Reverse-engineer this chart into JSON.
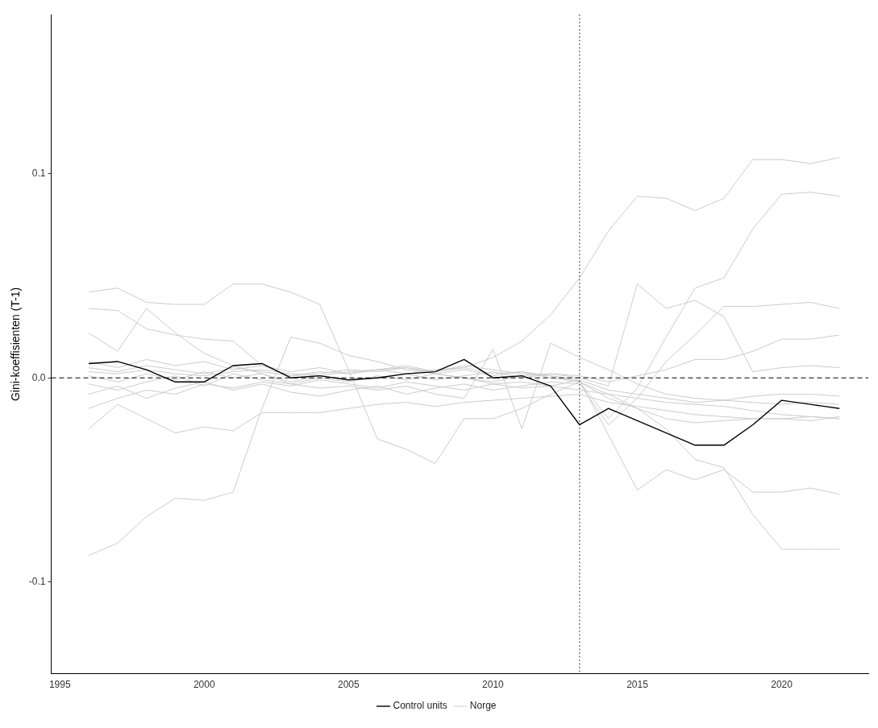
{
  "chart_data": {
    "type": "line",
    "ylabel": "Gini-koeffisienten (T-1)",
    "x": [
      1996,
      1997,
      1998,
      1999,
      2000,
      2001,
      2002,
      2003,
      2004,
      2005,
      2006,
      2007,
      2008,
      2009,
      2010,
      2011,
      2012,
      2013,
      2014,
      2015,
      2016,
      2017,
      2018,
      2019,
      2020,
      2021,
      2022
    ],
    "xlim": [
      1994.7,
      2023.0
    ],
    "xticks": [
      1995,
      2000,
      2005,
      2010,
      2015,
      2020
    ],
    "ylim": [
      -0.145,
      0.178
    ],
    "yticks": [
      -0.1,
      {
        "value": 0,
        "label": "0.0"
      },
      0.1
    ],
    "grid": false,
    "legend": "bottom",
    "marker": "none",
    "ref_lines": [
      {
        "axis": "y",
        "value": 0,
        "color": "#000000",
        "line_style": "dashed"
      },
      {
        "axis": "x",
        "value": 2013,
        "color": "#000000",
        "line_style": "dotted"
      }
    ],
    "series": [
      {
        "name": "Control units",
        "color": "#000000",
        "values": [
          0.007,
          0.008,
          0.004,
          -0.002,
          -0.002,
          0.006,
          0.007,
          0.0,
          0.001,
          -0.001,
          0.0,
          0.002,
          0.003,
          0.009,
          0.0,
          0.001,
          -0.004,
          -0.023,
          -0.015,
          -0.021,
          -0.027,
          -0.033,
          -0.033,
          -0.023,
          -0.011,
          -0.013,
          -0.015
        ]
      },
      {
        "name": "Norge",
        "color": "#cccccc",
        "values": [
          0.003,
          0.002,
          0.004,
          0.002,
          0.001,
          0.003,
          0.004,
          0.002,
          0.001,
          0.003,
          0.004,
          0.002,
          0.004,
          0.005,
          0.01,
          0.018,
          0.031,
          0.049,
          0.072,
          0.089,
          0.088,
          0.082,
          0.088,
          0.107,
          0.107,
          0.105,
          0.108
        ]
      },
      {
        "color": "#cccccc",
        "values": [
          0.005,
          0.003,
          0.006,
          0.004,
          0.002,
          0.005,
          0.003,
          0.001,
          0.002,
          0.004,
          0.003,
          0.005,
          0.002,
          0.004,
          0.001,
          0.003,
          0.0,
          -0.002,
          -0.02,
          -0.005,
          0.02,
          0.044,
          0.049,
          0.073,
          0.09,
          0.091,
          0.089
        ]
      },
      {
        "color": "#cccccc",
        "values": [
          -0.087,
          -0.081,
          -0.068,
          -0.059,
          -0.06,
          -0.056,
          -0.015,
          0.02,
          0.017,
          0.011,
          0.008,
          0.004,
          0.002,
          0.0,
          -0.003,
          -0.002,
          -0.004,
          -0.006,
          -0.008,
          -0.01,
          -0.012,
          -0.013,
          -0.014,
          -0.016,
          -0.018,
          -0.019,
          -0.02
        ]
      },
      {
        "color": "#cccccc",
        "values": [
          0.042,
          0.044,
          0.037,
          0.036,
          0.036,
          0.046,
          0.046,
          0.042,
          0.036,
          0.004,
          -0.03,
          -0.035,
          -0.042,
          -0.02,
          -0.02,
          -0.015,
          -0.008,
          -0.002,
          -0.01,
          -0.015,
          -0.02,
          -0.022,
          -0.021,
          -0.02,
          -0.02,
          -0.019,
          -0.02
        ]
      },
      {
        "color": "#cccccc",
        "values": [
          0.034,
          0.033,
          0.024,
          0.021,
          0.019,
          0.018,
          0.006,
          0.001,
          0.003,
          0.002,
          0.004,
          0.005,
          0.003,
          0.006,
          0.004,
          0.002,
          0.001,
          -0.001,
          -0.006,
          -0.008,
          -0.01,
          -0.012,
          -0.011,
          -0.012,
          -0.013,
          -0.012,
          -0.013
        ]
      },
      {
        "color": "#cccccc",
        "values": [
          0.022,
          0.013,
          0.034,
          0.022,
          0.012,
          0.006,
          0.002,
          -0.003,
          -0.005,
          -0.004,
          -0.006,
          -0.004,
          -0.008,
          -0.01,
          0.014,
          -0.025,
          0.017,
          0.01,
          0.004,
          -0.003,
          -0.008,
          -0.01,
          -0.011,
          -0.009,
          -0.008,
          -0.008,
          -0.009
        ]
      },
      {
        "color": "#cccccc",
        "values": [
          -0.025,
          -0.013,
          -0.02,
          -0.027,
          -0.024,
          -0.026,
          -0.017,
          -0.017,
          -0.017,
          -0.015,
          -0.013,
          -0.012,
          -0.014,
          -0.012,
          -0.011,
          -0.01,
          -0.009,
          -0.008,
          -0.012,
          -0.014,
          -0.016,
          -0.018,
          -0.019,
          -0.02,
          -0.02,
          -0.021,
          -0.019
        ]
      },
      {
        "color": "#cccccc",
        "values": [
          -0.003,
          -0.006,
          -0.002,
          0.001,
          -0.004,
          0.002,
          -0.001,
          -0.003,
          0.0,
          -0.002,
          0.001,
          -0.001,
          0.002,
          0.0,
          -0.002,
          0.001,
          0.002,
          0.0,
          -0.004,
          0.046,
          0.034,
          0.038,
          0.03,
          0.003,
          0.005,
          0.006,
          0.005
        ]
      },
      {
        "color": "#cccccc",
        "values": [
          -0.008,
          -0.004,
          -0.01,
          -0.005,
          -0.002,
          -0.006,
          -0.003,
          -0.007,
          -0.009,
          -0.006,
          -0.004,
          -0.008,
          -0.005,
          -0.003,
          -0.006,
          -0.004,
          -0.002,
          -0.003,
          -0.023,
          -0.01,
          0.008,
          0.021,
          0.035,
          0.035,
          0.036,
          0.037,
          0.034
        ]
      },
      {
        "color": "#cccccc",
        "values": [
          0.008,
          0.005,
          0.009,
          0.006,
          0.008,
          0.004,
          0.006,
          0.003,
          0.005,
          0.002,
          0.004,
          0.006,
          0.003,
          0.005,
          0.002,
          0.003,
          0.001,
          -0.002,
          -0.008,
          -0.015,
          -0.025,
          -0.04,
          -0.044,
          -0.067,
          -0.084,
          -0.084,
          -0.084
        ]
      },
      {
        "color": "#cccccc",
        "values": [
          -0.015,
          -0.01,
          -0.006,
          -0.008,
          -0.003,
          -0.005,
          -0.002,
          -0.004,
          -0.001,
          -0.003,
          -0.005,
          -0.002,
          -0.004,
          -0.006,
          -0.003,
          -0.005,
          -0.004,
          -0.001,
          -0.028,
          -0.055,
          -0.045,
          -0.05,
          -0.045,
          -0.056,
          -0.056,
          -0.054,
          -0.057
        ]
      },
      {
        "color": "#cccccc",
        "values": [
          0.001,
          -0.002,
          0.002,
          -0.001,
          0.003,
          0.0,
          0.002,
          -0.002,
          0.001,
          -0.001,
          0.0,
          0.002,
          -0.001,
          0.001,
          0.003,
          0.0,
          0.002,
          0.001,
          -0.002,
          0.001,
          0.004,
          0.009,
          0.009,
          0.013,
          0.019,
          0.019,
          0.021
        ]
      }
    ]
  }
}
